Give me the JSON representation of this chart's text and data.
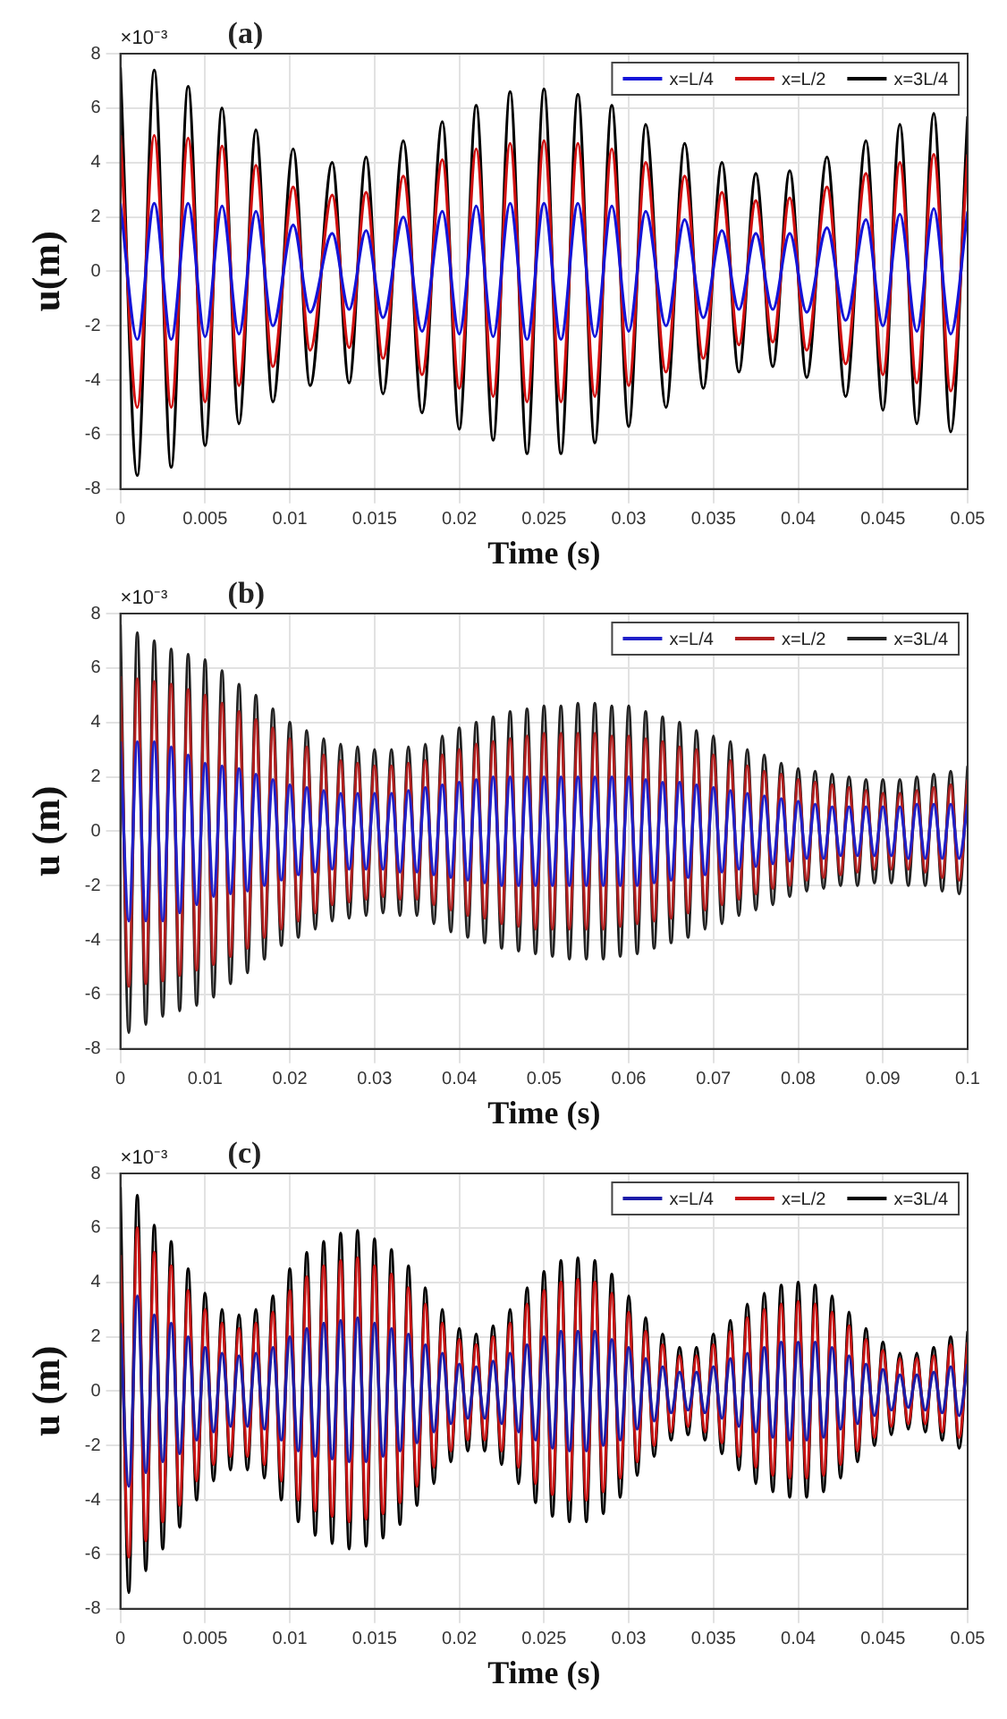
{
  "chart_data": [
    {
      "type": "line",
      "xlabel": "Time (s)",
      "ylabel": "u(m)",
      "annotations": [
        "×10⁻³",
        "(a)"
      ],
      "xlim": [
        0,
        0.05
      ],
      "xticks": [
        0,
        0.005,
        0.01,
        0.015,
        0.02,
        0.025,
        0.03,
        0.035,
        0.04,
        0.045,
        0.05
      ],
      "ylim": [
        -8,
        8
      ],
      "yticks": [
        -8,
        -6,
        -4,
        -2,
        0,
        2,
        4,
        6,
        8
      ],
      "grid": true,
      "legend": "top right",
      "x": [
        0,
        0.001,
        0.002,
        0.003,
        0.004,
        0.005,
        0.006,
        0.007,
        0.008,
        0.009,
        0.0102,
        0.0112,
        0.0125,
        0.0135,
        0.0145,
        0.0155,
        0.0167,
        0.0178,
        0.019,
        0.02,
        0.021,
        0.022,
        0.023,
        0.024,
        0.025,
        0.026,
        0.027,
        0.028,
        0.029,
        0.03,
        0.031,
        0.0322,
        0.0333,
        0.0344,
        0.0355,
        0.0365,
        0.0375,
        0.0385,
        0.0395,
        0.0405,
        0.0417,
        0.0428,
        0.044,
        0.045,
        0.046,
        0.047,
        0.048,
        0.049,
        0.05
      ],
      "series": [
        {
          "name": "x=L/4",
          "color": "#1414d8",
          "values": [
            2.5,
            -2.5,
            2.5,
            -2.5,
            2.5,
            -2.4,
            2.4,
            -2.3,
            2.2,
            -2.0,
            1.7,
            -1.5,
            1.4,
            -1.4,
            1.5,
            -1.7,
            2.0,
            -2.2,
            2.2,
            -2.3,
            2.4,
            -2.4,
            2.5,
            -2.5,
            2.5,
            -2.5,
            2.5,
            -2.4,
            2.4,
            -2.2,
            2.2,
            -2.0,
            1.9,
            -1.7,
            1.5,
            -1.4,
            1.4,
            -1.4,
            1.4,
            -1.5,
            1.6,
            -1.8,
            1.9,
            -2.0,
            2.1,
            -2.2,
            2.3,
            -2.3,
            2.2
          ]
        },
        {
          "name": "x=L/2",
          "color": "#d01010",
          "values": [
            5.0,
            -5.0,
            5.0,
            -5.0,
            4.9,
            -4.8,
            4.6,
            -4.2,
            3.9,
            -3.5,
            3.1,
            -2.9,
            2.8,
            -2.8,
            2.9,
            -3.2,
            3.5,
            -3.8,
            4.1,
            -4.3,
            4.5,
            -4.6,
            4.7,
            -4.8,
            4.8,
            -4.8,
            4.7,
            -4.6,
            4.5,
            -4.2,
            4.0,
            -3.7,
            3.5,
            -3.2,
            2.9,
            -2.7,
            2.6,
            -2.6,
            2.7,
            -2.9,
            3.1,
            -3.4,
            3.6,
            -3.8,
            4.0,
            -4.1,
            4.3,
            -4.4,
            4.3
          ]
        },
        {
          "name": "x=3L/4",
          "color": "#000000",
          "values": [
            7.5,
            -7.5,
            7.4,
            -7.2,
            6.8,
            -6.4,
            6.0,
            -5.6,
            5.2,
            -4.8,
            4.5,
            -4.2,
            4.0,
            -4.1,
            4.2,
            -4.5,
            4.8,
            -5.2,
            5.5,
            -5.8,
            6.1,
            -6.2,
            6.6,
            -6.7,
            6.7,
            -6.7,
            6.5,
            -6.3,
            6.1,
            -5.7,
            5.4,
            -5.0,
            4.7,
            -4.3,
            4.0,
            -3.7,
            3.6,
            -3.5,
            3.7,
            -3.9,
            4.2,
            -4.6,
            4.8,
            -5.1,
            5.4,
            -5.6,
            5.8,
            -5.9,
            5.7
          ]
        }
      ]
    },
    {
      "type": "line",
      "xlabel": "Time (s)",
      "ylabel": "u (m)",
      "annotations": [
        "×10⁻³",
        "(b)"
      ],
      "xlim": [
        0,
        0.1
      ],
      "xticks": [
        0,
        0.01,
        0.02,
        0.03,
        0.04,
        0.05,
        0.06,
        0.07,
        0.08,
        0.09,
        0.1
      ],
      "ylim": [
        -8,
        8
      ],
      "yticks": [
        -8,
        -6,
        -4,
        -2,
        0,
        2,
        4,
        6,
        8
      ],
      "grid": true,
      "legend": "top right",
      "x": [
        0,
        0.001,
        0.002,
        0.003,
        0.004,
        0.005,
        0.006,
        0.007,
        0.008,
        0.009,
        0.01,
        0.011,
        0.012,
        0.013,
        0.014,
        0.015,
        0.016,
        0.017,
        0.018,
        0.019,
        0.02,
        0.021,
        0.022,
        0.023,
        0.024,
        0.025,
        0.026,
        0.027,
        0.028,
        0.029,
        0.03,
        0.031,
        0.032,
        0.033,
        0.034,
        0.035,
        0.036,
        0.037,
        0.038,
        0.039,
        0.04,
        0.041,
        0.042,
        0.043,
        0.044,
        0.045,
        0.046,
        0.047,
        0.048,
        0.049,
        0.05,
        0.051,
        0.052,
        0.053,
        0.054,
        0.055,
        0.056,
        0.057,
        0.058,
        0.059,
        0.06,
        0.061,
        0.062,
        0.063,
        0.064,
        0.065,
        0.066,
        0.067,
        0.068,
        0.069,
        0.07,
        0.071,
        0.072,
        0.073,
        0.074,
        0.075,
        0.076,
        0.077,
        0.078,
        0.079,
        0.08,
        0.081,
        0.082,
        0.083,
        0.084,
        0.085,
        0.086,
        0.087,
        0.088,
        0.089,
        0.09,
        0.091,
        0.092,
        0.093,
        0.094,
        0.095,
        0.096,
        0.097,
        0.098,
        0.099,
        0.1
      ],
      "series": [
        {
          "name": "x=L/4",
          "color": "#2020c8",
          "values": [
            3.3,
            -3.3,
            3.3,
            -3.3,
            3.3,
            -3.3,
            3.1,
            -3.0,
            2.8,
            -2.7,
            2.5,
            -2.4,
            2.4,
            -2.3,
            2.3,
            -2.2,
            2.1,
            -2.0,
            1.9,
            -1.8,
            1.7,
            -1.6,
            1.6,
            -1.5,
            1.5,
            -1.4,
            1.4,
            -1.4,
            1.4,
            -1.4,
            1.4,
            -1.4,
            1.4,
            -1.5,
            1.5,
            -1.5,
            1.6,
            -1.6,
            1.7,
            -1.7,
            1.8,
            -1.8,
            1.9,
            -1.9,
            2.0,
            -2.0,
            2.0,
            -2.0,
            2.0,
            -2.0,
            2.0,
            -2.0,
            2.0,
            -2.0,
            2.0,
            -2.0,
            2.0,
            -2.0,
            2.0,
            -2.0,
            2.0,
            -2.0,
            1.9,
            -1.9,
            1.8,
            -1.8,
            1.8,
            -1.7,
            1.7,
            -1.6,
            1.6,
            -1.5,
            1.5,
            -1.4,
            1.4,
            -1.3,
            1.3,
            -1.2,
            1.2,
            -1.1,
            1.1,
            -1.0,
            1.0,
            -1.0,
            0.9,
            -0.9,
            0.9,
            -0.9,
            0.9,
            -0.9,
            0.9,
            -0.9,
            0.9,
            -1.0,
            1.0,
            -1.0,
            1.0,
            -1.0,
            1.0,
            -1.0,
            1.0
          ]
        },
        {
          "name": "x=L/2",
          "color": "#b01e1e",
          "values": [
            5.7,
            -5.7,
            5.6,
            -5.6,
            5.5,
            -5.5,
            5.4,
            -5.3,
            5.2,
            -5.1,
            5.0,
            -4.9,
            4.7,
            -4.6,
            4.4,
            -4.3,
            4.1,
            -3.9,
            3.8,
            -3.6,
            3.4,
            -3.3,
            3.1,
            -3.0,
            2.8,
            -2.7,
            2.6,
            -2.6,
            2.5,
            -2.5,
            2.4,
            -2.4,
            2.4,
            -2.5,
            2.5,
            -2.5,
            2.6,
            -2.7,
            2.8,
            -2.9,
            3.0,
            -3.1,
            3.2,
            -3.2,
            3.3,
            -3.4,
            3.4,
            -3.5,
            3.5,
            -3.6,
            3.6,
            -3.6,
            3.6,
            -3.6,
            3.6,
            -3.6,
            3.6,
            -3.6,
            3.5,
            -3.5,
            3.5,
            -3.4,
            3.4,
            -3.3,
            3.3,
            -3.2,
            3.1,
            -3.0,
            3.0,
            -2.9,
            2.8,
            -2.7,
            2.6,
            -2.5,
            2.4,
            -2.3,
            2.2,
            -2.1,
            2.1,
            -2.0,
            1.9,
            -1.8,
            1.8,
            -1.7,
            1.7,
            -1.6,
            1.6,
            -1.5,
            1.5,
            -1.4,
            1.4,
            -1.4,
            1.4,
            -1.4,
            1.5,
            -1.5,
            1.6,
            -1.7,
            1.7,
            -1.8,
            1.9
          ]
        },
        {
          "name": "x=3L/4",
          "color": "#222222",
          "values": [
            7.6,
            -7.4,
            7.3,
            -7.1,
            7.0,
            -6.8,
            6.7,
            -6.6,
            6.5,
            -6.4,
            6.3,
            -6.1,
            5.9,
            -5.6,
            5.4,
            -5.2,
            5.0,
            -4.7,
            4.5,
            -4.2,
            4.0,
            -3.9,
            3.7,
            -3.6,
            3.4,
            -3.3,
            3.2,
            -3.2,
            3.1,
            -3.1,
            3.0,
            -3.0,
            3.0,
            -3.1,
            3.1,
            -3.1,
            3.2,
            -3.4,
            3.5,
            -3.7,
            3.8,
            -3.9,
            4.0,
            -4.1,
            4.2,
            -4.3,
            4.4,
            -4.4,
            4.5,
            -4.5,
            4.6,
            -4.6,
            4.6,
            -4.7,
            4.7,
            -4.7,
            4.7,
            -4.7,
            4.6,
            -4.6,
            4.6,
            -4.5,
            4.4,
            -4.3,
            4.2,
            -4.1,
            4.0,
            -3.9,
            3.7,
            -3.6,
            3.5,
            -3.4,
            3.3,
            -3.1,
            3.0,
            -2.9,
            2.8,
            -2.7,
            2.5,
            -2.4,
            2.3,
            -2.2,
            2.2,
            -2.1,
            2.1,
            -2.0,
            2.0,
            -2.0,
            1.9,
            -1.9,
            1.9,
            -1.9,
            1.9,
            -2.0,
            2.0,
            -2.0,
            2.1,
            -2.2,
            2.2,
            -2.3,
            2.4
          ]
        }
      ]
    },
    {
      "type": "line",
      "xlabel": "Time (s)",
      "ylabel": "u (m)",
      "annotations": [
        "×10⁻³",
        "(c)"
      ],
      "xlim": [
        0,
        0.05
      ],
      "xticks": [
        0,
        0.005,
        0.01,
        0.015,
        0.02,
        0.025,
        0.03,
        0.035,
        0.04,
        0.045,
        0.05
      ],
      "ylim": [
        -8,
        8
      ],
      "yticks": [
        -8,
        -6,
        -4,
        -2,
        0,
        2,
        4,
        6,
        8
      ],
      "grid": true,
      "legend": "top right",
      "x": [
        0,
        0.0005,
        0.001,
        0.0015,
        0.002,
        0.0025,
        0.003,
        0.0035,
        0.004,
        0.0045,
        0.005,
        0.0055,
        0.006,
        0.0065,
        0.007,
        0.0075,
        0.008,
        0.0085,
        0.009,
        0.0095,
        0.01,
        0.0105,
        0.011,
        0.0115,
        0.012,
        0.0125,
        0.013,
        0.0135,
        0.014,
        0.0145,
        0.015,
        0.0155,
        0.016,
        0.0165,
        0.017,
        0.0175,
        0.018,
        0.0185,
        0.019,
        0.0195,
        0.02,
        0.0205,
        0.021,
        0.0215,
        0.022,
        0.0225,
        0.023,
        0.0235,
        0.024,
        0.0245,
        0.025,
        0.0255,
        0.026,
        0.0265,
        0.027,
        0.0275,
        0.028,
        0.0285,
        0.029,
        0.0295,
        0.03,
        0.0305,
        0.031,
        0.0315,
        0.032,
        0.0325,
        0.033,
        0.0335,
        0.034,
        0.0345,
        0.035,
        0.0355,
        0.036,
        0.0365,
        0.037,
        0.0375,
        0.038,
        0.0385,
        0.039,
        0.0395,
        0.04,
        0.0405,
        0.041,
        0.0415,
        0.042,
        0.0425,
        0.043,
        0.0435,
        0.044,
        0.0445,
        0.045,
        0.0455,
        0.046,
        0.0465,
        0.047,
        0.0475,
        0.048,
        0.0485,
        0.049,
        0.0495,
        0.05
      ],
      "series": [
        {
          "name": "x=L/4",
          "color": "#1c1ca8",
          "values": [
            2.5,
            -3.5,
            3.5,
            -3.0,
            2.8,
            -2.6,
            2.5,
            -2.3,
            2.0,
            -1.8,
            1.6,
            -1.5,
            1.4,
            -1.3,
            1.3,
            -1.3,
            1.4,
            -1.4,
            1.6,
            -1.8,
            2.0,
            -2.2,
            2.3,
            -2.4,
            2.5,
            -2.5,
            2.6,
            -2.6,
            2.7,
            -2.6,
            2.5,
            -2.4,
            2.3,
            -2.2,
            2.1,
            -1.9,
            1.7,
            -1.5,
            1.4,
            -1.2,
            1.0,
            -1.0,
            0.9,
            -1.0,
            1.1,
            -1.2,
            1.4,
            -1.5,
            1.7,
            -1.8,
            2.0,
            -2.1,
            2.2,
            -2.2,
            2.2,
            -2.2,
            2.2,
            -2.0,
            1.9,
            -1.8,
            1.6,
            -1.4,
            1.2,
            -1.1,
            0.9,
            -0.8,
            0.7,
            -0.7,
            0.7,
            -0.8,
            0.9,
            -1.0,
            1.2,
            -1.3,
            1.4,
            -1.5,
            1.6,
            -1.7,
            1.8,
            -1.8,
            1.8,
            -1.8,
            1.8,
            -1.7,
            1.6,
            -1.4,
            1.3,
            -1.2,
            1.0,
            -0.9,
            0.8,
            -0.7,
            0.6,
            -0.6,
            0.6,
            -0.7,
            0.7,
            -0.8,
            0.9,
            -0.9,
            1.0
          ]
        },
        {
          "name": "x=L/2",
          "color": "#c81414",
          "values": [
            5.0,
            -6.1,
            6.0,
            -5.5,
            5.1,
            -4.8,
            4.6,
            -4.2,
            3.7,
            -3.3,
            3.0,
            -2.7,
            2.5,
            -2.4,
            2.3,
            -2.4,
            2.5,
            -2.7,
            2.9,
            -3.3,
            3.7,
            -4.0,
            4.2,
            -4.4,
            4.6,
            -4.6,
            4.8,
            -4.8,
            4.9,
            -4.7,
            4.6,
            -4.5,
            4.3,
            -4.1,
            3.8,
            -3.5,
            3.2,
            -2.8,
            2.5,
            -2.2,
            1.9,
            -1.8,
            1.7,
            -1.8,
            2.0,
            -2.2,
            2.5,
            -2.8,
            3.2,
            -3.4,
            3.7,
            -3.8,
            4.0,
            -4.0,
            4.1,
            -4.0,
            4.0,
            -3.7,
            3.6,
            -3.2,
            2.9,
            -2.6,
            2.2,
            -2.0,
            1.7,
            -1.5,
            1.3,
            -1.3,
            1.3,
            -1.5,
            1.7,
            -1.9,
            2.2,
            -2.4,
            2.7,
            -2.8,
            3.0,
            -3.1,
            3.2,
            -3.2,
            3.3,
            -3.2,
            3.2,
            -3.1,
            2.9,
            -2.7,
            2.4,
            -2.2,
            1.9,
            -1.7,
            1.5,
            -1.3,
            1.2,
            -1.2,
            1.2,
            -1.2,
            1.3,
            -1.5,
            1.7,
            -1.7,
            1.8
          ]
        },
        {
          "name": "x=3L/4",
          "color": "#000000",
          "values": [
            7.5,
            -7.4,
            7.2,
            -6.6,
            6.1,
            -5.8,
            5.5,
            -5.0,
            4.5,
            -4.0,
            3.6,
            -3.3,
            3.0,
            -2.9,
            2.8,
            -2.9,
            3.0,
            -3.2,
            3.5,
            -4.0,
            4.5,
            -4.8,
            5.1,
            -5.3,
            5.5,
            -5.6,
            5.8,
            -5.8,
            5.9,
            -5.7,
            5.6,
            -5.4,
            5.2,
            -4.9,
            4.6,
            -4.2,
            3.8,
            -3.4,
            3.0,
            -2.6,
            2.3,
            -2.2,
            2.1,
            -2.2,
            2.4,
            -2.7,
            3.0,
            -3.4,
            3.8,
            -4.1,
            4.4,
            -4.6,
            4.8,
            -4.8,
            4.9,
            -4.8,
            4.8,
            -4.5,
            4.3,
            -3.9,
            3.5,
            -3.1,
            2.7,
            -2.4,
            2.1,
            -1.8,
            1.6,
            -1.6,
            1.6,
            -1.8,
            2.1,
            -2.3,
            2.6,
            -2.9,
            3.2,
            -3.4,
            3.6,
            -3.7,
            3.9,
            -3.9,
            4.0,
            -3.9,
            3.9,
            -3.7,
            3.5,
            -3.2,
            2.9,
            -2.6,
            2.3,
            -2.0,
            1.8,
            -1.6,
            1.4,
            -1.4,
            1.4,
            -1.5,
            1.6,
            -1.8,
            2.0,
            -2.1,
            2.2
          ]
        }
      ]
    }
  ]
}
